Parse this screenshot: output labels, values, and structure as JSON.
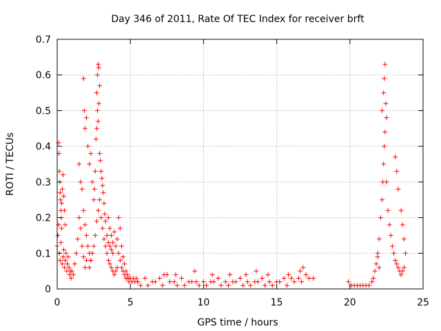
{
  "chart_data": {
    "type": "scatter",
    "title": "Day 346 of 2011, Rate Of TEC Index for receiver brft",
    "xlabel": "GPS time / hours",
    "ylabel": "ROTI / TECUs",
    "xlim": [
      0,
      25
    ],
    "ylim": [
      0,
      0.7
    ],
    "grid": true,
    "marker": "+",
    "color": "#ff0000",
    "xticks": [
      0,
      5,
      10,
      15,
      20,
      25
    ],
    "xtick_labels": [
      "0",
      "5",
      "10",
      "15",
      "20",
      "25"
    ],
    "yticks": [
      0,
      0.1,
      0.2,
      0.3,
      0.4,
      0.5,
      0.6,
      0.7
    ],
    "ytick_labels": [
      "0",
      "0.1",
      "0.2",
      "0.3",
      "0.4",
      "0.5",
      "0.6",
      "0.7"
    ],
    "series": [
      {
        "name": "ROTI",
        "x": [
          0.0,
          0.05,
          0.1,
          0.15,
          0.2,
          0.25,
          0.3,
          0.35,
          0.4,
          0.45,
          0.5,
          0.55,
          0.6,
          0.65,
          0.7,
          0.75,
          0.8,
          0.85,
          0.9,
          0.95,
          0.1,
          0.12,
          0.15,
          0.18,
          0.2,
          0.22,
          0.25,
          0.28,
          0.3,
          0.35,
          0.4,
          0.45,
          0.5,
          0.55,
          1.0,
          1.1,
          1.2,
          1.3,
          1.4,
          1.5,
          1.6,
          1.7,
          1.8,
          1.9,
          2.0,
          1.5,
          1.6,
          1.7,
          1.8,
          1.9,
          2.0,
          2.1,
          2.2,
          2.3,
          1.8,
          1.85,
          1.9,
          2.0,
          2.1,
          2.2,
          2.3,
          2.4,
          2.5,
          2.55,
          2.6,
          2.65,
          2.7,
          2.75,
          2.8,
          2.85,
          2.9,
          2.7,
          2.75,
          2.8,
          2.85,
          2.9,
          2.95,
          3.0,
          3.05,
          3.1,
          3.15,
          3.2,
          3.25,
          3.3,
          3.4,
          3.5,
          3.6,
          3.7,
          3.8,
          2.2,
          2.3,
          2.4,
          2.5,
          2.6,
          2.7,
          2.8,
          2.9,
          3.0,
          3.1,
          3.2,
          3.3,
          3.4,
          3.5,
          3.6,
          3.7,
          3.8,
          3.9,
          4.0,
          4.1,
          3.5,
          3.6,
          3.7,
          3.8,
          3.9,
          4.0,
          4.1,
          4.2,
          4.3,
          4.4,
          4.5,
          4.6,
          4.7,
          4.8,
          4.9,
          4.2,
          4.3,
          4.4,
          4.5,
          4.6,
          4.7,
          4.8,
          4.9,
          5.0,
          5.1,
          5.2,
          5.3,
          5.4,
          5.5,
          5.5,
          6.0,
          6.5,
          7.0,
          7.5,
          8.0,
          8.5,
          9.0,
          9.5,
          10.0,
          10.5,
          11.0,
          11.5,
          12.0,
          12.5,
          13.0,
          13.5,
          14.0,
          14.5,
          15.0,
          15.5,
          16.0,
          16.5,
          17.0,
          17.5,
          5.7,
          6.2,
          6.7,
          7.2,
          7.7,
          8.2,
          8.7,
          9.2,
          9.7,
          10.2,
          10.7,
          11.2,
          11.7,
          12.2,
          12.7,
          13.2,
          13.7,
          14.2,
          14.7,
          15.2,
          15.7,
          16.2,
          16.7,
          17.2,
          7.3,
          8.1,
          9.4,
          10.6,
          11.8,
          12.9,
          13.6,
          14.4,
          15.8,
          16.6,
          16.8,
          19.9,
          20.1,
          20.3,
          20.5,
          20.7,
          20.9,
          21.1,
          21.3,
          21.5,
          21.6,
          21.7,
          21.8,
          21.9,
          22.0,
          21.9,
          22.0,
          22.1,
          22.2,
          22.25,
          22.3,
          22.35,
          22.4,
          22.2,
          22.3,
          22.35,
          22.4,
          22.45,
          22.5,
          22.5,
          22.6,
          22.7,
          22.8,
          22.9,
          23.0,
          23.1,
          23.2,
          23.3,
          23.4,
          23.5,
          23.6,
          23.7,
          23.1,
          23.2,
          23.3,
          23.5,
          23.6,
          23.7,
          23.8
        ],
        "y": [
          0.12,
          0.15,
          0.18,
          0.1,
          0.08,
          0.13,
          0.17,
          0.07,
          0.09,
          0.11,
          0.06,
          0.08,
          0.1,
          0.05,
          0.07,
          0.09,
          0.06,
          0.04,
          0.05,
          0.03,
          0.41,
          0.38,
          0.33,
          0.3,
          0.27,
          0.25,
          0.22,
          0.2,
          0.24,
          0.28,
          0.32,
          0.26,
          0.22,
          0.18,
          0.05,
          0.04,
          0.07,
          0.1,
          0.14,
          0.2,
          0.17,
          0.12,
          0.09,
          0.06,
          0.08,
          0.35,
          0.3,
          0.28,
          0.22,
          0.18,
          0.15,
          0.12,
          0.1,
          0.08,
          0.59,
          0.5,
          0.45,
          0.48,
          0.4,
          0.35,
          0.38,
          0.3,
          0.25,
          0.28,
          0.33,
          0.42,
          0.55,
          0.6,
          0.63,
          0.62,
          0.57,
          0.45,
          0.5,
          0.47,
          0.52,
          0.38,
          0.36,
          0.33,
          0.31,
          0.29,
          0.27,
          0.24,
          0.21,
          0.19,
          0.15,
          0.13,
          0.12,
          0.11,
          0.1,
          0.06,
          0.08,
          0.1,
          0.12,
          0.15,
          0.19,
          0.22,
          0.25,
          0.2,
          0.17,
          0.14,
          0.12,
          0.1,
          0.08,
          0.07,
          0.06,
          0.05,
          0.04,
          0.05,
          0.06,
          0.2,
          0.17,
          0.15,
          0.13,
          0.16,
          0.12,
          0.14,
          0.1,
          0.08,
          0.06,
          0.05,
          0.04,
          0.03,
          0.03,
          0.02,
          0.2,
          0.17,
          0.12,
          0.09,
          0.07,
          0.05,
          0.04,
          0.03,
          0.03,
          0.02,
          0.03,
          0.02,
          0.03,
          0.02,
          0.02,
          0.03,
          0.02,
          0.03,
          0.04,
          0.02,
          0.03,
          0.02,
          0.02,
          0.02,
          0.02,
          0.03,
          0.02,
          0.02,
          0.03,
          0.02,
          0.02,
          0.03,
          0.02,
          0.02,
          0.03,
          0.03,
          0.03,
          0.04,
          0.03,
          0.01,
          0.01,
          0.02,
          0.01,
          0.02,
          0.01,
          0.01,
          0.02,
          0.01,
          0.01,
          0.02,
          0.01,
          0.01,
          0.02,
          0.01,
          0.01,
          0.02,
          0.01,
          0.01,
          0.02,
          0.01,
          0.02,
          0.02,
          0.03,
          0.04,
          0.04,
          0.05,
          0.04,
          0.04,
          0.04,
          0.05,
          0.04,
          0.04,
          0.05,
          0.06,
          0.02,
          0.01,
          0.01,
          0.01,
          0.01,
          0.01,
          0.01,
          0.01,
          0.02,
          0.03,
          0.05,
          0.07,
          0.09,
          0.06,
          0.1,
          0.14,
          0.2,
          0.25,
          0.3,
          0.35,
          0.4,
          0.44,
          0.5,
          0.55,
          0.59,
          0.63,
          0.52,
          0.48,
          0.3,
          0.22,
          0.18,
          0.15,
          0.12,
          0.1,
          0.08,
          0.07,
          0.06,
          0.05,
          0.04,
          0.05,
          0.06,
          0.37,
          0.33,
          0.28,
          0.22,
          0.18,
          0.14,
          0.1
        ]
      }
    ]
  }
}
